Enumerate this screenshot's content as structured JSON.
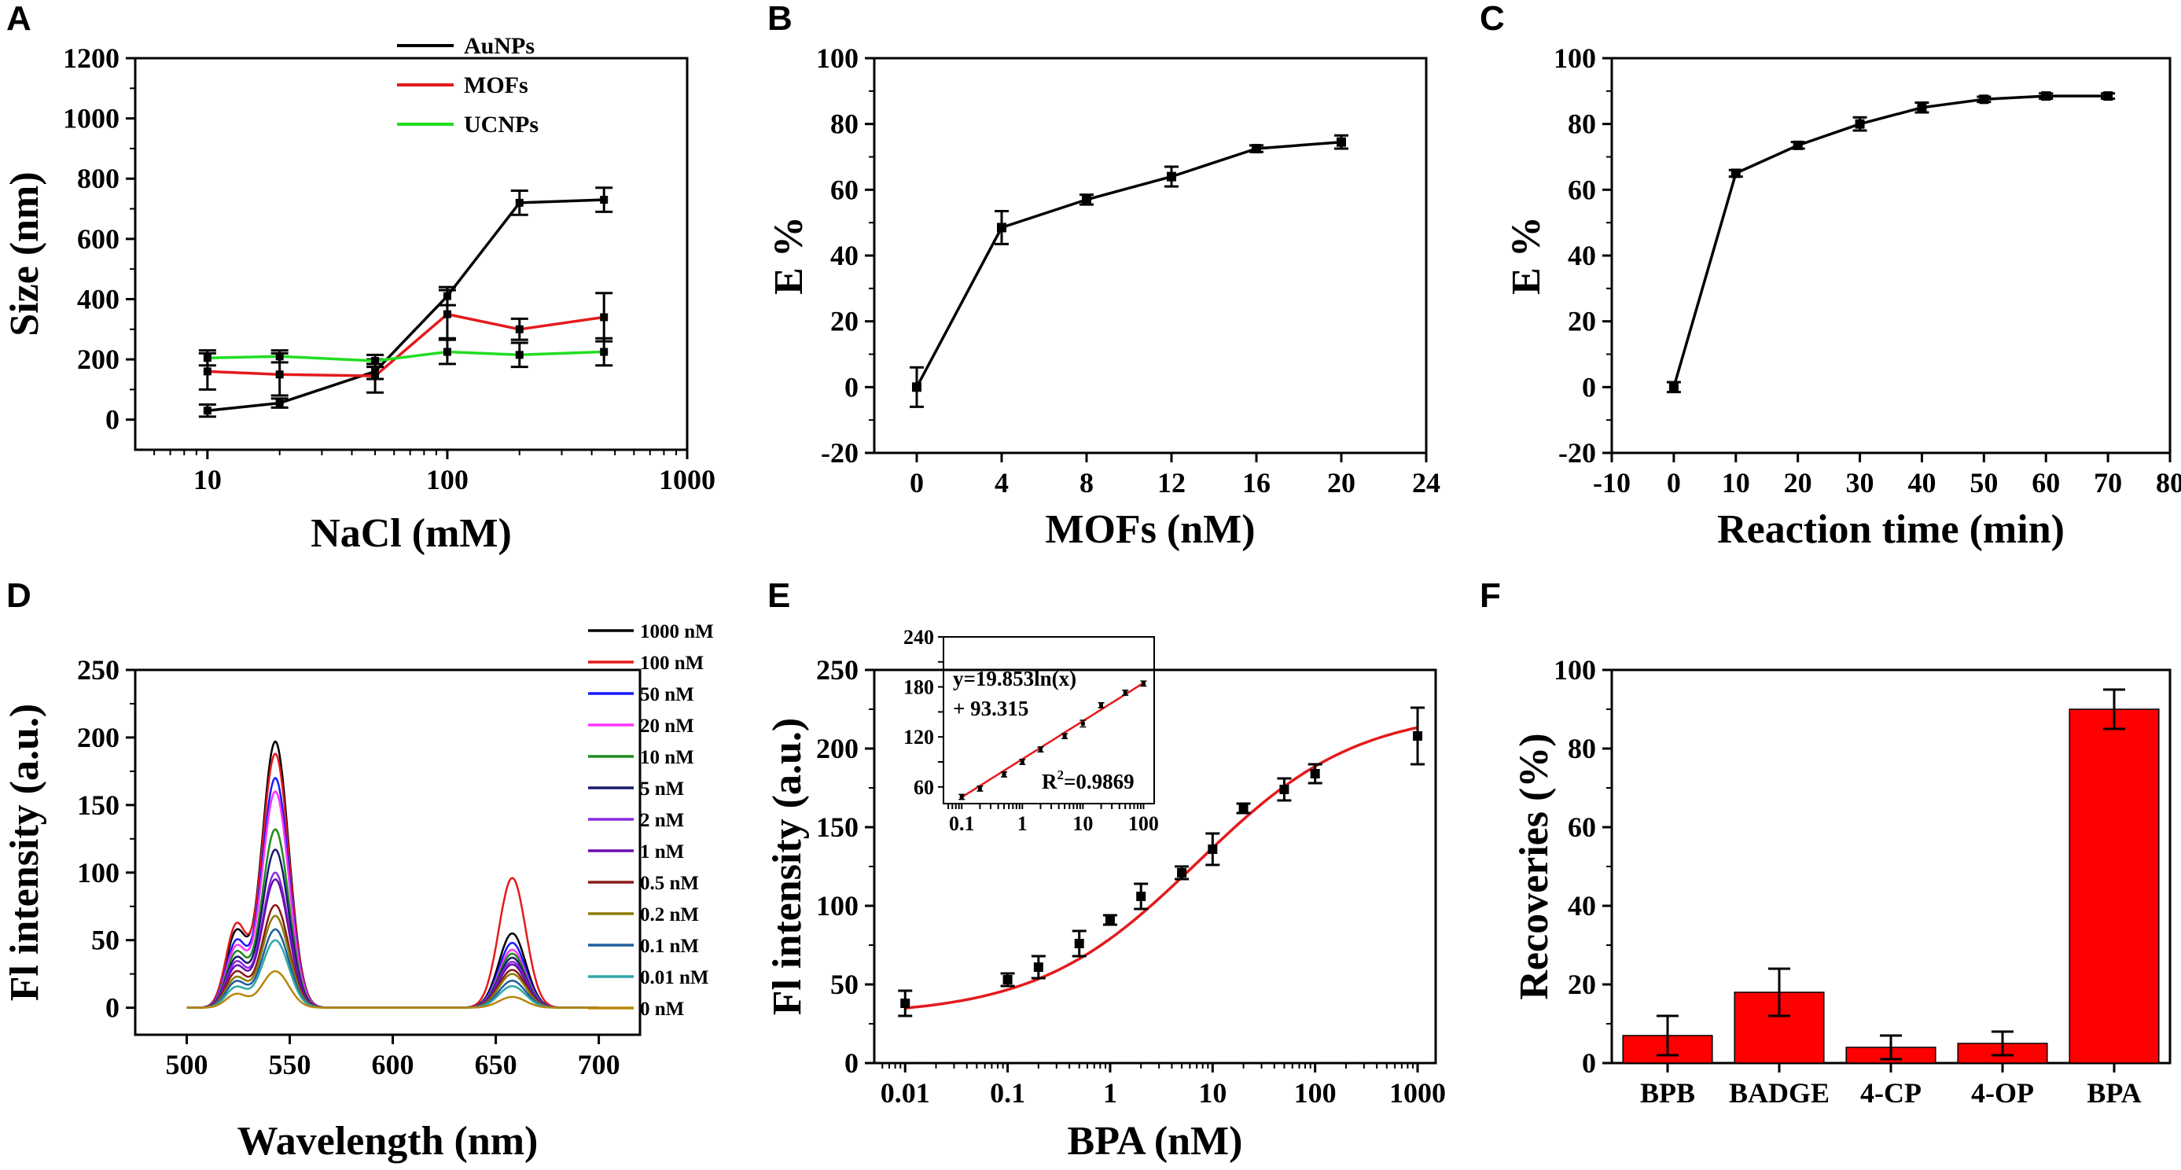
{
  "chart_data": [
    {
      "panel": "A",
      "type": "line",
      "xscale": "log",
      "xlabel": "NaCl (mM)",
      "ylabel": "Size (nm)",
      "xlim": [
        5,
        1000
      ],
      "ylim": [
        -100,
        1200
      ],
      "xticks": [
        10,
        100,
        1000
      ],
      "xtick_labels": [
        "10",
        "100",
        "1000"
      ],
      "yticks": [
        0,
        200,
        400,
        600,
        800,
        1000,
        1200
      ],
      "ytick_labels": [
        "0",
        "200",
        "400",
        "600",
        "800",
        "1000",
        "1200"
      ],
      "legend_position": "top-center",
      "series": [
        {
          "name": "AuNPs",
          "color": "#000000",
          "x": [
            10,
            20,
            50,
            100,
            200,
            450
          ],
          "values": [
            30,
            55,
            160,
            410,
            720,
            730
          ],
          "errors": [
            20,
            15,
            25,
            30,
            40,
            40
          ]
        },
        {
          "name": "MOFs",
          "color": "#e41a1c",
          "x": [
            10,
            20,
            50,
            100,
            200,
            450
          ],
          "values": [
            160,
            150,
            145,
            350,
            300,
            340
          ],
          "errors": [
            60,
            70,
            55,
            80,
            35,
            80
          ]
        },
        {
          "name": "UCNPs",
          "color": "#22dd22",
          "x": [
            10,
            20,
            50,
            100,
            200,
            450
          ],
          "values": [
            205,
            210,
            195,
            225,
            215,
            225
          ],
          "errors": [
            25,
            20,
            20,
            40,
            40,
            45
          ]
        }
      ]
    },
    {
      "panel": "B",
      "type": "line",
      "xlabel": "MOFs (nM)",
      "ylabel": "E %",
      "xlim": [
        -2,
        24
      ],
      "ylim": [
        -20,
        100
      ],
      "xticks": [
        0,
        4,
        8,
        12,
        16,
        20,
        24
      ],
      "xtick_labels": [
        "0",
        "4",
        "8",
        "12",
        "16",
        "20",
        "24"
      ],
      "yticks": [
        -20,
        0,
        20,
        40,
        60,
        80,
        100
      ],
      "ytick_labels": [
        "-20",
        "0",
        "20",
        "40",
        "60",
        "80",
        "100"
      ],
      "series": [
        {
          "name": "E",
          "color": "#000000",
          "x": [
            0,
            4,
            8,
            12,
            16,
            20
          ],
          "values": [
            0,
            48.5,
            57,
            64,
            72.5,
            74.5
          ],
          "errors": [
            6,
            5,
            1.5,
            3,
            1,
            2
          ]
        }
      ]
    },
    {
      "panel": "C",
      "type": "line",
      "xlabel": "Reaction time (min)",
      "ylabel": "E %",
      "xlim": [
        -10,
        80
      ],
      "ylim": [
        -20,
        100
      ],
      "xticks": [
        -10,
        0,
        10,
        20,
        30,
        40,
        50,
        60,
        70,
        80
      ],
      "xtick_labels": [
        "-10",
        "0",
        "10",
        "20",
        "30",
        "40",
        "50",
        "60",
        "70",
        "80"
      ],
      "yticks": [
        -20,
        0,
        20,
        40,
        60,
        80,
        100
      ],
      "ytick_labels": [
        "-20",
        "0",
        "20",
        "40",
        "60",
        "80",
        "100"
      ],
      "series": [
        {
          "name": "E",
          "color": "#000000",
          "x": [
            0,
            10,
            20,
            30,
            40,
            50,
            60,
            70
          ],
          "values": [
            0,
            65,
            73.5,
            80,
            85,
            87.5,
            88.5,
            88.5
          ],
          "errors": [
            1.5,
            1,
            1,
            2,
            1.5,
            0.8,
            0.8,
            0.8
          ]
        }
      ]
    },
    {
      "panel": "D",
      "type": "line",
      "xlabel": "Wavelength (nm)",
      "ylabel": "Fl intensity (a.u.)",
      "xlim": [
        475,
        720
      ],
      "ylim": [
        -20,
        250
      ],
      "xticks": [
        500,
        550,
        600,
        650,
        700
      ],
      "xtick_labels": [
        "500",
        "550",
        "600",
        "650",
        "700"
      ],
      "yticks": [
        0,
        50,
        100,
        150,
        200,
        250
      ],
      "ytick_labels": [
        "0",
        "50",
        "100",
        "150",
        "200",
        "250"
      ],
      "legend_position": "top-right",
      "spectrum_model": "three gaussian peaks at 524, 543 and 658 nm; values listed are peak heights per curve",
      "peak_centers_nm": [
        524,
        543,
        658
      ],
      "series": [
        {
          "name": "1000 nM",
          "color": "#000000",
          "peak524": 55,
          "peak543": 197,
          "peak658": 55
        },
        {
          "name": "100 nM",
          "color": "#e41a1c",
          "peak524": 60,
          "peak543": 188,
          "peak658": 96
        },
        {
          "name": "50 nM",
          "color": "#1a1aff",
          "peak524": 48,
          "peak543": 170,
          "peak658": 48
        },
        {
          "name": "20 nM",
          "color": "#ff33ff",
          "peak524": 44,
          "peak543": 160,
          "peak658": 43
        },
        {
          "name": "10 nM",
          "color": "#1f8a1f",
          "peak524": 40,
          "peak543": 132,
          "peak658": 40
        },
        {
          "name": "5 nM",
          "color": "#1a1a6e",
          "peak524": 36,
          "peak543": 117,
          "peak658": 37
        },
        {
          "name": "2 nM",
          "color": "#8a2be2",
          "peak524": 33,
          "peak543": 100,
          "peak658": 34
        },
        {
          "name": "1 nM",
          "color": "#6a0dad",
          "peak524": 30,
          "peak543": 95,
          "peak658": 32
        },
        {
          "name": "0.5 nM",
          "color": "#8b1a1a",
          "peak524": 26,
          "peak543": 76,
          "peak658": 28
        },
        {
          "name": "0.2 nM",
          "color": "#8b7d00",
          "peak524": 22,
          "peak543": 68,
          "peak658": 25
        },
        {
          "name": "0.1 nM",
          "color": "#1f5f9f",
          "peak524": 19,
          "peak543": 58,
          "peak658": 20
        },
        {
          "name": "0.01 nM",
          "color": "#2fa8a8",
          "peak524": 15,
          "peak543": 50,
          "peak658": 16
        },
        {
          "name": "0 nM",
          "color": "#b8860b",
          "peak524": 10,
          "peak543": 27,
          "peak658": 8
        }
      ]
    },
    {
      "panel": "E",
      "type": "scatter",
      "xscale": "log",
      "xlabel": "BPA (nM)",
      "ylabel": "Fl intensity (a.u.)",
      "xlim": [
        0.005,
        1500
      ],
      "ylim": [
        0,
        250
      ],
      "xticks": [
        0.01,
        0.1,
        1,
        10,
        100,
        1000
      ],
      "xtick_labels": [
        "0.01",
        "0.1",
        "1",
        "10",
        "100",
        "1000"
      ],
      "yticks": [
        0,
        50,
        100,
        150,
        200,
        250
      ],
      "ytick_labels": [
        "0",
        "50",
        "100",
        "150",
        "200",
        "250"
      ],
      "fit_color": "#e41a1c",
      "series": [
        {
          "name": "data",
          "color": "#000000",
          "x": [
            0.01,
            0.1,
            0.2,
            0.5,
            1,
            2,
            5,
            10,
            20,
            50,
            100,
            1000
          ],
          "values": [
            38,
            53,
            61,
            76,
            91,
            106,
            121,
            136,
            162,
            174,
            184,
            208
          ],
          "errors": [
            8,
            4,
            7,
            8,
            3,
            8,
            4,
            10,
            3,
            7,
            6,
            18
          ]
        }
      ],
      "inset": {
        "xscale": "log",
        "xlim": [
          0.05,
          150
        ],
        "ylim": [
          40,
          240
        ],
        "xticks": [
          0.1,
          1,
          10,
          100
        ],
        "xtick_labels": [
          "0.1",
          "1",
          "10",
          "100"
        ],
        "yticks": [
          60,
          120,
          180,
          240
        ],
        "ytick_labels": [
          "60",
          "120",
          "180",
          "240"
        ],
        "x": [
          0.1,
          0.2,
          0.5,
          1,
          2,
          5,
          10,
          20,
          50,
          100
        ],
        "values": [
          48,
          58,
          75,
          90,
          105,
          121,
          136,
          158,
          173,
          184
        ],
        "errors": [
          3,
          3,
          3,
          3,
          3,
          3,
          4,
          3,
          3,
          3
        ],
        "equation_line1": "y=19.853ln(x)",
        "equation_line2": "+ 93.315",
        "r2_label": "R",
        "r2_value": "=0.9869",
        "r2_power": "2"
      }
    },
    {
      "panel": "F",
      "type": "bar",
      "xlabel": "",
      "ylabel": "Recoveries (%)",
      "ylim": [
        0,
        100
      ],
      "yticks": [
        0,
        20,
        40,
        60,
        80,
        100
      ],
      "ytick_labels": [
        "0",
        "20",
        "40",
        "60",
        "80",
        "100"
      ],
      "categories": [
        "BPB",
        "BADGE",
        "4-CP",
        "4-OP",
        "BPA"
      ],
      "values": [
        7,
        18,
        4,
        5,
        90
      ],
      "errors": [
        5,
        6,
        3,
        3,
        5
      ],
      "color": "#ff0000"
    }
  ]
}
